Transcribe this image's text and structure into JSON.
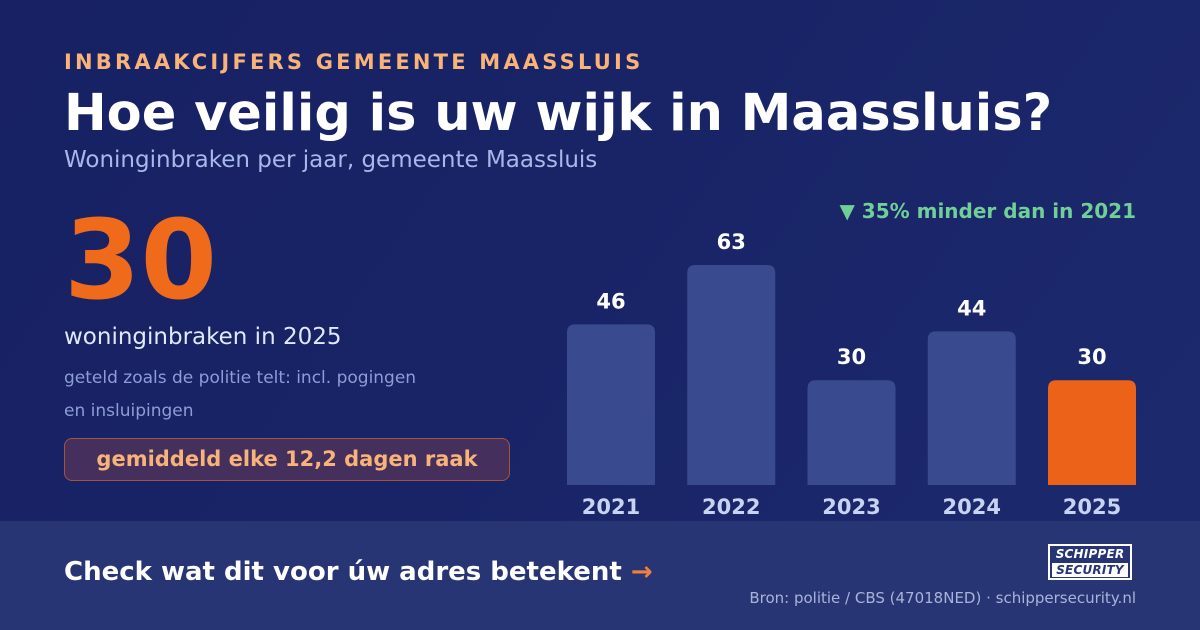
{
  "header": {
    "eyebrow": "INBRAAKCIJFERS GEMEENTE MAASSLUIS",
    "title": "Hoe veilig is uw wijk in Maassluis?",
    "subtitle": "Woninginbraken per jaar, gemeente Maassluis"
  },
  "kpi": {
    "value": "30",
    "label": "woninginbraken in 2025",
    "note": "geteld zoals de politie telt: incl. pogingen en insluipingen",
    "pill": "gemiddeld elke 12,2 dagen raak"
  },
  "delta": {
    "text": "▼ 35% minder dan in 2021",
    "color": "#6fcf97"
  },
  "chart_data": {
    "type": "bar",
    "categories": [
      "2021",
      "2022",
      "2023",
      "2024",
      "2025"
    ],
    "values": [
      46,
      63,
      30,
      44,
      30
    ],
    "data_labels": [
      "46",
      "63",
      "30",
      "44",
      "30"
    ],
    "highlight_index": 4,
    "colors": {
      "bar": "#3a4a8e",
      "highlight": "#ec6219",
      "label": "#ffffff",
      "tick": "#c8d2f2"
    },
    "ylim": [
      0,
      63
    ],
    "grid": false
  },
  "footer": {
    "cta_text": "Check wat dit voor úw adres betekent",
    "cta_arrow": "→",
    "source": "Bron: politie / CBS (47018NED) · schippersecurity.nl",
    "logo": {
      "line1": "SCHIPPER",
      "line2": "SECURITY"
    }
  },
  "colors": {
    "background": "#172163",
    "accent_orange": "#ef6a1a",
    "eyebrow": "#f8b379",
    "footer": "#283574"
  }
}
